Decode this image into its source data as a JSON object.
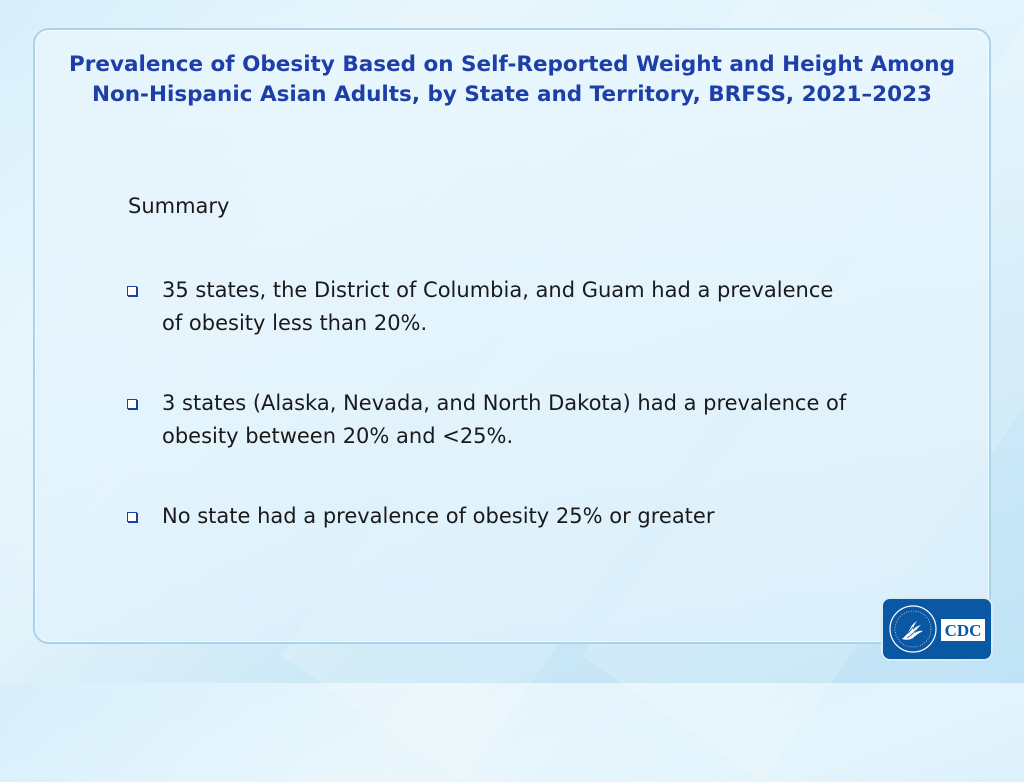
{
  "title": {
    "line1": "Prevalence of Obesity Based on Self-Reported Weight and Height Among",
    "line2": "Non-Hispanic Asian Adults, by State and Territory, BRFSS, 2021–2023"
  },
  "summary_heading": "Summary",
  "bullets": [
    {
      "line1": "35 states, the District of Columbia, and Guam had a prevalence",
      "line2": "of obesity less than 20%."
    },
    {
      "line1": "3 states (Alaska, Nevada, and North Dakota) had a prevalence of",
      "line2": "obesity between 20% and <25%."
    },
    {
      "line1": "No state had a prevalence of obesity 25% or greater",
      "line2": ""
    }
  ],
  "logo": {
    "text": "CDC",
    "icon": "hhs-eagle-seal-icon",
    "bg_color": "#0a57a4"
  },
  "colors": {
    "title": "#1f3fa8",
    "body_text": "#1a1a1a",
    "panel_border": "#a9d3ea"
  }
}
